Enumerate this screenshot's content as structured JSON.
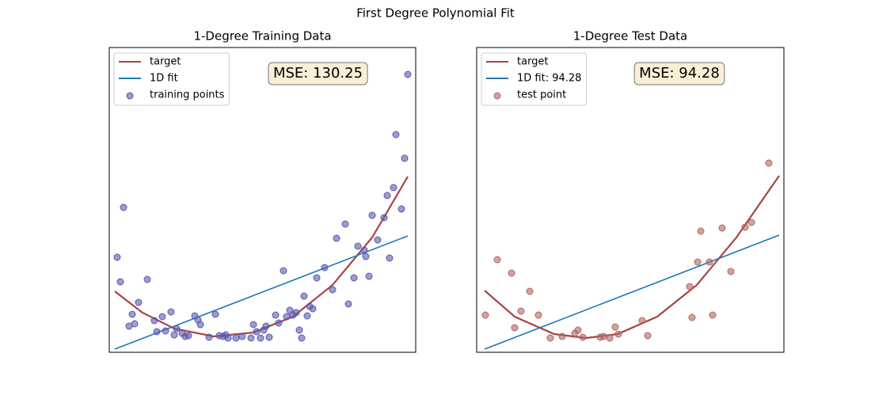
{
  "title": "First Degree Polynomial Fit",
  "chart_data": [
    {
      "type": "scatter",
      "title": "1-Degree Training Data",
      "annotation": "MSE: 130.25",
      "legend": "upper left",
      "xlim": [
        -7,
        380
      ],
      "ylim": [
        0,
        385
      ],
      "series": [
        {
          "name": "target",
          "type": "line",
          "color": "#a84444",
          "x": [
            0,
            35,
            75,
            125,
            175,
            225,
            275,
            325,
            370
          ],
          "values": [
            77,
            50,
            30,
            20,
            25,
            45,
            85,
            145,
            222
          ]
        },
        {
          "name": "1D fit",
          "type": "line",
          "color": "#1f77b4",
          "x": [
            0,
            370
          ],
          "values": [
            4,
            147
          ]
        },
        {
          "name": "training points",
          "type": "scatter",
          "color": "#5a5ab0",
          "x": [
            3,
            7,
            11,
            18,
            22,
            25,
            30,
            41,
            50,
            53,
            60,
            64,
            71,
            75,
            78,
            85,
            89,
            93,
            101,
            105,
            108,
            119,
            127,
            132,
            137,
            140,
            143,
            153,
            161,
            172,
            175,
            179,
            184,
            188,
            191,
            195,
            203,
            207,
            213,
            217,
            221,
            225,
            229,
            233,
            236,
            239,
            243,
            246,
            250,
            255,
            265,
            275,
            280,
            291,
            295,
            302,
            307,
            315,
            317,
            321,
            325,
            332,
            340,
            344,
            347,
            352,
            355,
            362,
            366,
            370
          ],
          "values": [
            120,
            89,
            183,
            33,
            48,
            36,
            63,
            92,
            40,
            26,
            45,
            27,
            51,
            22,
            30,
            24,
            20,
            21,
            46,
            41,
            35,
            19,
            48,
            21,
            20,
            22,
            18,
            18,
            20,
            18,
            35,
            26,
            18,
            28,
            33,
            19,
            47,
            37,
            103,
            45,
            53,
            47,
            50,
            28,
            18,
            71,
            46,
            58,
            55,
            94,
            107,
            79,
            144,
            162,
            61,
            94,
            134,
            129,
            121,
            96,
            173,
            142,
            170,
            198,
            119,
            208,
            275,
            181,
            245,
            351
          ]
        }
      ]
    },
    {
      "type": "scatter",
      "title": "1-Degree Test Data",
      "annotation": "MSE: 94.28",
      "legend": "upper left",
      "xlim": [
        -10,
        378
      ],
      "ylim": [
        0,
        385
      ],
      "series": [
        {
          "name": "target",
          "type": "line",
          "color": "#a84444",
          "x": [
            0,
            38,
            88,
            128,
            168,
            218,
            268,
            318,
            372
          ],
          "values": [
            78,
            45,
            23,
            18,
            23,
            45,
            85,
            145,
            223
          ]
        },
        {
          "name": "1D fit: 94.28",
          "type": "line",
          "color": "#1f77b4",
          "x": [
            0,
            372
          ],
          "values": [
            4,
            148
          ]
        },
        {
          "name": "test point",
          "type": "scatter",
          "color": "#b06660",
          "x": [
            1,
            16,
            34,
            38,
            46,
            57,
            68,
            83,
            98,
            114,
            118,
            124,
            146,
            150,
            158,
            165,
            169,
            199,
            206,
            259,
            262,
            269,
            273,
            284,
            288,
            300,
            311,
            329,
            337,
            359
          ],
          "values": [
            47,
            117,
            100,
            31,
            52,
            77,
            47,
            18,
            20,
            24,
            28,
            19,
            19,
            20,
            18,
            32,
            23,
            40,
            21,
            83,
            44,
            114,
            153,
            114,
            47,
            157,
            102,
            158,
            164,
            239
          ]
        }
      ]
    }
  ]
}
